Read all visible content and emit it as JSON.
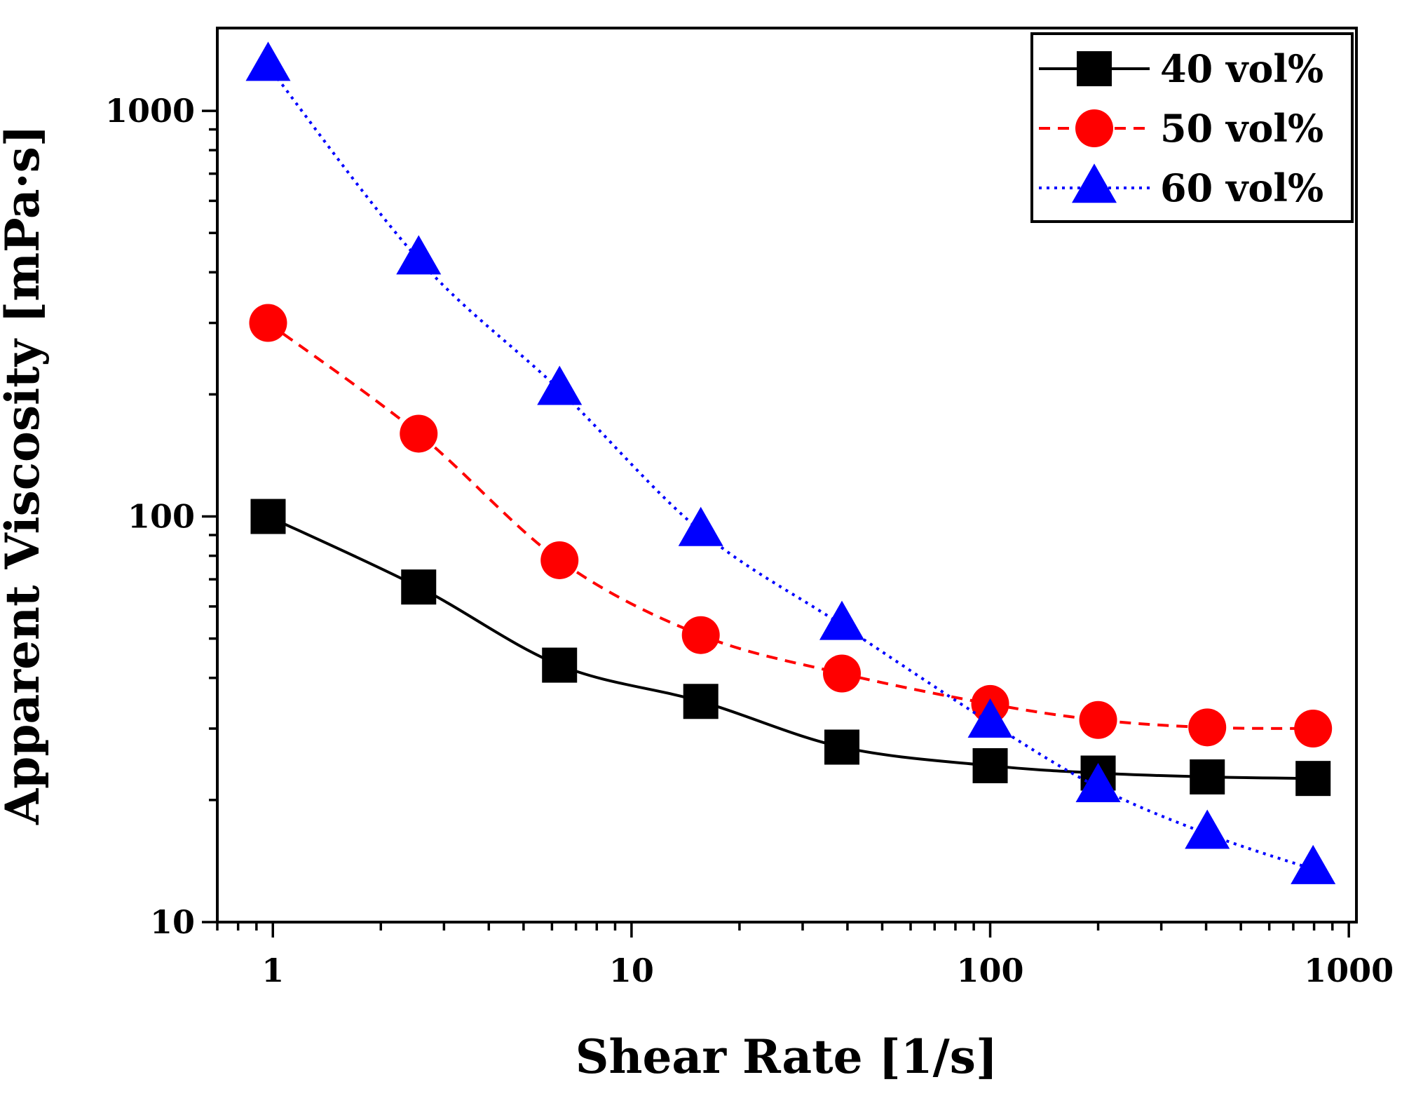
{
  "chart_data": {
    "type": "line",
    "title": "",
    "xlabel": "Shear Rate [1/s]",
    "ylabel": "Apparent Viscosity [mPa·s]",
    "xscale": "log",
    "yscale": "log",
    "xlim": [
      0.7,
      1050
    ],
    "ylim": [
      10,
      1600
    ],
    "xticks": [
      {
        "value": 1,
        "label": "1"
      },
      {
        "value": 10,
        "label": "10"
      },
      {
        "value": 100,
        "label": "100"
      },
      {
        "value": 1000,
        "label": "1000"
      }
    ],
    "yticks": [
      {
        "value": 10,
        "label": "10"
      },
      {
        "value": 100,
        "label": "100"
      },
      {
        "value": 1000,
        "label": "1000"
      }
    ],
    "legend_position": "top-right",
    "grid": false,
    "series": [
      {
        "name": "40 vol%",
        "color": "#000000",
        "marker": "square",
        "line_style": "solid",
        "x": [
          0.97,
          2.55,
          6.3,
          15.6,
          38.6,
          100,
          200,
          403,
          795
        ],
        "y": [
          100,
          67,
          43,
          35,
          27,
          24.3,
          23.3,
          22.8,
          22.6
        ]
      },
      {
        "name": "50 vol%",
        "color": "#ff0000",
        "marker": "circle",
        "line_style": "dashed",
        "x": [
          0.97,
          2.55,
          6.3,
          15.6,
          38.6,
          100,
          200,
          403,
          795
        ],
        "y": [
          300,
          160,
          78,
          51,
          41,
          34.5,
          31.5,
          30.2,
          30
        ]
      },
      {
        "name": "60 vol%",
        "color": "#0000ff",
        "marker": "triangle",
        "line_style": "dotted",
        "x": [
          0.97,
          2.55,
          6.3,
          15.6,
          38.6,
          100,
          200,
          403,
          795
        ],
        "y": [
          1290,
          430,
          205,
          92,
          54,
          31,
          21.5,
          16.5,
          13.5
        ]
      }
    ]
  }
}
